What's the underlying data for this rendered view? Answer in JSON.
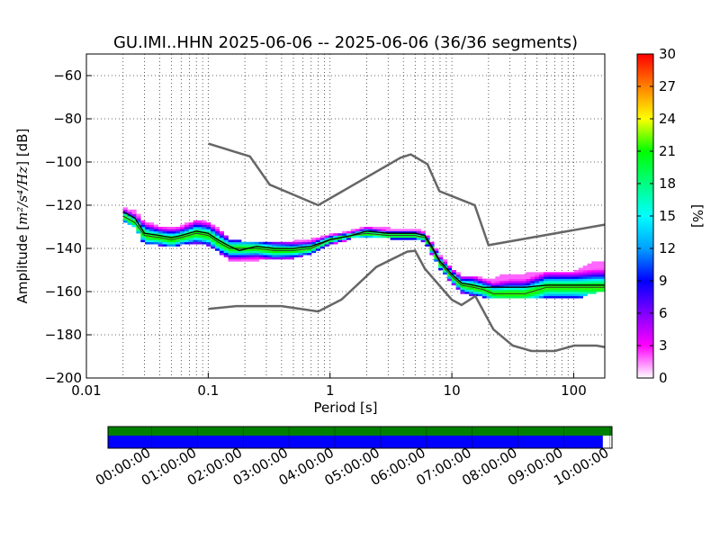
{
  "figure": {
    "title": "GU.IMI..HHN   2025-06-06 -- 2025-06-06  (36/36 segments)"
  },
  "chart_data": [
    {
      "type": "heatmap",
      "name": "ppsd",
      "xlabel": "Period [s]",
      "ylabel_prefix": "Amplitude [",
      "ylabel_math": "m²/s⁴/Hz",
      "ylabel_suffix": "] [dB]",
      "xscale": "log",
      "xlim": [
        0.01,
        180
      ],
      "ylim": [
        -200,
        -50
      ],
      "x_ticks": [
        {
          "value": 0.01,
          "label": "0.01"
        },
        {
          "value": 0.1,
          "label": "0.1"
        },
        {
          "value": 1,
          "label": "1"
        },
        {
          "value": 10,
          "label": "10"
        },
        {
          "value": 100,
          "label": "100"
        }
      ],
      "y_ticks": [
        {
          "value": -200,
          "label": "−200"
        },
        {
          "value": -180,
          "label": "−180"
        },
        {
          "value": -160,
          "label": "−160"
        },
        {
          "value": -140,
          "label": "−140"
        },
        {
          "value": -120,
          "label": "−120"
        },
        {
          "value": -100,
          "label": "−100"
        },
        {
          "value": -80,
          "label": "−80"
        },
        {
          "value": -60,
          "label": "−60"
        }
      ],
      "grid": true,
      "colorbar": {
        "label": "[%]",
        "min": 0,
        "max": 30,
        "ticks": [
          "0",
          "3",
          "6",
          "9",
          "12",
          "15",
          "18",
          "21",
          "24",
          "27",
          "30"
        ],
        "colors": [
          "#ffffff",
          "#ff00ff",
          "#8000ff",
          "#0000ff",
          "#00a0ff",
          "#00ffff",
          "#00ff80",
          "#00ff00",
          "#ffff00",
          "#ff8000",
          "#ff0000"
        ]
      },
      "noise_models": {
        "color": "#666666",
        "high": {
          "period": [
            0.1,
            0.22,
            0.32,
            0.8,
            3.8,
            4.6,
            6.3,
            7.9,
            15.4,
            20,
            180
          ],
          "db": [
            -91.5,
            -97.4,
            -110.5,
            -120,
            -98,
            -96.5,
            -101,
            -113.5,
            -120,
            -138.5,
            -129
          ]
        },
        "low": {
          "period": [
            0.1,
            0.17,
            0.4,
            0.8,
            1.24,
            2.4,
            4.3,
            5.0,
            6.0,
            10,
            12,
            15.6,
            21.9,
            31.6,
            45,
            70,
            101,
            154,
            180
          ],
          "db": [
            -168,
            -166.7,
            -166.7,
            -169.2,
            -163.7,
            -148.6,
            -141.5,
            -141.1,
            -149.4,
            -163.8,
            -166.2,
            -162.1,
            -177.5,
            -185,
            -187.5,
            -187.5,
            -185,
            -185,
            -185.7
          ]
        }
      },
      "mean_curve": {
        "color": "#000000",
        "period": [
          0.02,
          0.025,
          0.03,
          0.04,
          0.05,
          0.06,
          0.08,
          0.1,
          0.12,
          0.15,
          0.18,
          0.25,
          0.35,
          0.5,
          0.7,
          1.0,
          1.5,
          2.0,
          3.0,
          4.0,
          5.0,
          6.0,
          7.0,
          8.0,
          10,
          12,
          15,
          18,
          22,
          30,
          40,
          60,
          100,
          150,
          180
        ],
        "db": [
          -123,
          -126,
          -133,
          -134,
          -135,
          -134,
          -132,
          -133,
          -136,
          -139,
          -141,
          -139,
          -140,
          -140,
          -139,
          -136,
          -134,
          -132,
          -133,
          -133,
          -133,
          -134,
          -140,
          -146,
          -152,
          -156,
          -157,
          -158,
          -158,
          -158,
          -158,
          -157,
          -157,
          -157,
          -157
        ]
      },
      "mode_curve": {
        "color": "#333333",
        "period": [
          0.02,
          0.025,
          0.03,
          0.04,
          0.05,
          0.06,
          0.08,
          0.1,
          0.12,
          0.15,
          0.18,
          0.25,
          0.35,
          0.5,
          0.7,
          1.0,
          1.5,
          2.0,
          3.0,
          4.0,
          5.0,
          6.0,
          7.0,
          8.0,
          10,
          12,
          15,
          18,
          22,
          30,
          40,
          60,
          100,
          150,
          180
        ],
        "db": [
          -125,
          -128,
          -134,
          -135,
          -136,
          -135,
          -133,
          -134,
          -137,
          -140,
          -140,
          -140,
          -141,
          -141,
          -140,
          -136,
          -134,
          -133,
          -134,
          -134,
          -134,
          -135,
          -141,
          -147,
          -153,
          -157,
          -158,
          -159,
          -161,
          -161,
          -161,
          -158,
          -158,
          -158,
          -158
        ]
      },
      "density_spread": {
        "period": [
          0.02,
          0.025,
          0.03,
          0.04,
          0.05,
          0.06,
          0.08,
          0.1,
          0.12,
          0.15,
          0.18,
          0.25,
          0.35,
          0.5,
          0.7,
          1.0,
          1.5,
          2.0,
          3.0,
          4.0,
          5.0,
          6.0,
          7.0,
          8.0,
          10,
          12,
          15,
          18,
          22,
          30,
          40,
          60,
          100,
          150,
          180
        ],
        "db_low": [
          -127,
          -130,
          -138,
          -138,
          -139,
          -138,
          -137,
          -138,
          -141,
          -145,
          -146,
          -145,
          -145,
          -144,
          -142,
          -138,
          -135,
          -135,
          -135,
          -136,
          -135,
          -137,
          -143,
          -149,
          -156,
          -160,
          -162,
          -162,
          -163,
          -163,
          -163,
          -163,
          -163,
          -160,
          -160
        ],
        "db_high": [
          -121,
          -123,
          -128,
          -130,
          -130,
          -130,
          -127,
          -128,
          -131,
          -136,
          -137,
          -137,
          -137,
          -137,
          -136,
          -134,
          -132,
          -130,
          -131,
          -132,
          -131,
          -133,
          -138,
          -143,
          -150,
          -153,
          -153,
          -154,
          -154,
          -152,
          -152,
          -151,
          -151,
          -146,
          -146
        ]
      }
    },
    {
      "type": "bar",
      "name": "data_availability",
      "x_ticks": [
        "00:00:00",
        "01:00:00",
        "02:00:00",
        "03:00:00",
        "04:00:00",
        "05:00:00",
        "06:00:00",
        "07:00:00",
        "08:00:00",
        "09:00:00",
        "10:00:00"
      ],
      "start_hour": -0.95,
      "end_hour": 10.05,
      "coverage_green": [
        -0.95,
        10.05
      ],
      "coverage_blue": [
        -0.95,
        9.85
      ],
      "colors": {
        "green": "#008000",
        "blue": "#0000ff",
        "empty": "#ffffff"
      }
    }
  ]
}
